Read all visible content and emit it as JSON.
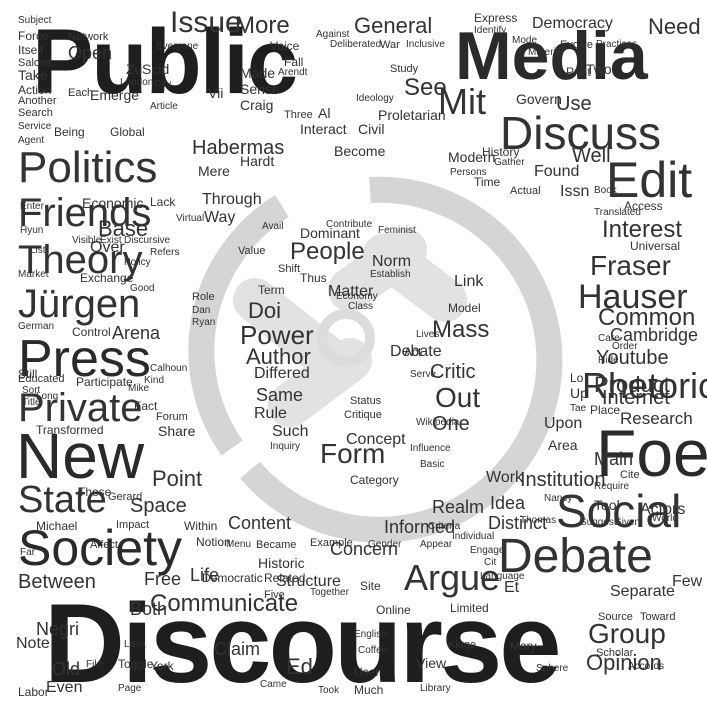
{
  "colors": {
    "background": "#ffffff",
    "ink_dark": "#222222",
    "ink_mid": "#444444",
    "ink_light": "#777777",
    "logo_watermark": "#d8d8d8"
  },
  "background_shape": "circular speech-bubble / broken-chain icon (watermark)",
  "words": {
    "public": "Public",
    "discourse": "Discourse",
    "media": "Media",
    "discuss": "Discuss",
    "edit": "Edit",
    "foe": "Foe",
    "social": "Social",
    "debate": "Debate",
    "argue": "Argue",
    "new": "New",
    "press": "Press",
    "society": "Society",
    "state": "State",
    "private": "Private",
    "politics": "Politics",
    "friends": "Friends",
    "theory": "Theory",
    "jurgen": "Jürgen",
    "rhetoric": "Rhetoric",
    "hauser": "Hauser",
    "fraser": "Fraser",
    "communicate": "Communicate",
    "group": "Group",
    "opinion": "Opinion",
    "issue": "Issue",
    "more": "More",
    "mit": "Mit",
    "see": "See",
    "general": "General",
    "democracy": "Democracy",
    "need": "Need",
    "interest": "Interest",
    "common": "Common",
    "cambridge": "Cambridge",
    "youtube": "Youtube",
    "product": "Product",
    "internet": "Internet",
    "research": "Research",
    "people": "People",
    "power": "Power",
    "doi": "Doi",
    "author": "Author",
    "form": "Form",
    "out": "Out",
    "one": "One",
    "mass": "Mass",
    "critic": "Critic",
    "between": "Between",
    "concern": "Concern",
    "distinct": "Distinct",
    "idea": "Idea",
    "structure": "Structure",
    "habermas": "Habermas",
    "base": "Base",
    "arena": "Arena",
    "point": "Point",
    "space": "Space",
    "content": "Content",
    "life": "Life",
    "free": "Free",
    "both": "Both",
    "negri": "Negri",
    "old": "Old",
    "even": "Even",
    "note": "Note",
    "claim": "Claim",
    "ed": "Ed",
    "use": "Use",
    "well": "Well",
    "institution": "Institution",
    "work": "Work",
    "realm": "Realm",
    "informed": "Informed",
    "main": "Main",
    "tool": "Tool",
    "actors": "Actors",
    "few": "Few",
    "separate": "Separate",
    "economic": "Economic",
    "over": "Over",
    "through": "Through",
    "way": "Way",
    "same": "Same",
    "rule": "Rule",
    "such": "Such",
    "differed": "Differed",
    "term": "Term",
    "matter": "Matter",
    "norm": "Norm",
    "dominant": "Dominant",
    "link": "Link",
    "means": "Means",
    "model": "Model",
    "debate_small": "Debate",
    "concept": "Concept",
    "category": "Category",
    "critique": "Critique",
    "status": "Status",
    "wikipedia": "Wikipedia",
    "upon": "Upon",
    "area": "Area",
    "place": "Place",
    "moderns": "Modern",
    "history": "History",
    "time": "Time",
    "issn": "Issn",
    "voice": "Voice",
    "made": "Made",
    "sense": "Sense",
    "craig": "Craig",
    "open": "Open",
    "network": "Network",
    "subject": "Subject",
    "force": "Force",
    "itself": "Itself",
    "salons": "Salons",
    "take": "Take",
    "action": "Action",
    "another": "Another",
    "search": "Search",
    "service": "Service",
    "agent": "Agent",
    "each": "Each",
    "emerge": "Emerge",
    "global": "Global",
    "being": "Being",
    "lack": "Lack",
    "visible": "Visible",
    "exist": "Exist",
    "discursive": "Discursive",
    "refers": "Refers",
    "policy": "Policy",
    "market": "Market",
    "german": "German",
    "control": "Control",
    "still": "Still",
    "educated": "Educated",
    "participate": "Participate",
    "kind": "Kind",
    "transformed": "Transformed",
    "sort": "Sort",
    "those": "Those",
    "michael": "Michael",
    "gerard": "Gerard",
    "impact": "Impact",
    "within": "Within",
    "notion": "Notion",
    "historic": "Historic",
    "democratic": "Democratic",
    "related": "Related",
    "five": "Five",
    "example": "Example",
    "together": "Together",
    "site": "Site",
    "online": "Online",
    "limited": "Limited",
    "view": "View",
    "mary": "Mary",
    "scholar": "Scholar",
    "accords": "Accords",
    "source": "Source",
    "toward": "Toward",
    "thomas": "Thomas",
    "nancy": "Nancy",
    "given": "Given",
    "world": "World",
    "suggest": "Suggest",
    "fact": "Fact",
    "share": "Share",
    "forum": "Forum",
    "basic": "Basic",
    "inquiry": "Inquiry",
    "influence": "Influence",
    "proletarian": "Proletarian",
    "civil": "Civil",
    "become": "Become",
    "interact": "Interact",
    "hardt": "Hardt",
    "mere": "Mere",
    "access": "Access",
    "universal": "Universal",
    "translated": "Translated",
    "book": "Book",
    "found": "Found",
    "gather": "Gather",
    "persons": "Persons",
    "actual": "Actual",
    "study": "Study",
    "govern": "Govern",
    "express": "Express",
    "identify": "Identify",
    "two": "Two",
    "print": "Print",
    "fall": "Fall",
    "three": "Three",
    "al": "Al",
    "vii": "Vii",
    "scid": "Scid",
    "zu": "Zu",
    "everyone": "Everyone",
    "london": "London",
    "city": "City",
    "author_small": "Article",
    "mike": "Mike",
    "long": "Long",
    "title": "Title",
    "york": "York",
    "toggle": "Toggle",
    "page": "Page",
    "file": "File",
    "labor": "Labor",
    "affect": "Affect",
    "far": "Far",
    "lava": "Lava",
    "coffee": "Coffee",
    "user": "User",
    "much": "Much",
    "english": "English",
    "library": "Library",
    "sphere": "Sphere",
    "kluge": "Kluge",
    "came": "Came",
    "took": "Took",
    "calhoun": "Calhoun",
    "arendt": "Arendt",
    "become2": "Became",
    "menu": "Menu",
    "thus": "Thus",
    "class": "Class",
    "economy": "Economy",
    "establish": "Establish",
    "role": "Role",
    "dan": "Dan",
    "ryan": "Ryan",
    "act": "Act",
    "lives": "Lives",
    "serve": "Serve",
    "tae": "Tae",
    "up": "Up",
    "lo": "Lo",
    "cite": "Cite",
    "require": "Require",
    "hide": "Hide",
    "care": "Care",
    "order": "Order",
    "virtual": "Virtual",
    "exchange": "Exchange",
    "good": "Good",
    "ideology": "Ideology",
    "against": "Against",
    "war": "War",
    "inclusive": "Inclusive",
    "deliberated": "Deliberated",
    "evolve": "Evolve",
    "practices": "Practices",
    "mode": "Mode",
    "material": "Material",
    "hyun": "Hyun",
    "enter": "Enter",
    "list": "List",
    "value": "Value",
    "avail": "Avail",
    "shift": "Shift",
    "contribute": "Contribute",
    "feminist": "Feminist",
    "gender": "Gender",
    "appear": "Appear",
    "criteria": "Criteria",
    "individual": "Individual",
    "engage": "Engage",
    "cit": "Cit",
    "language": "Language",
    "et": "Et"
  }
}
